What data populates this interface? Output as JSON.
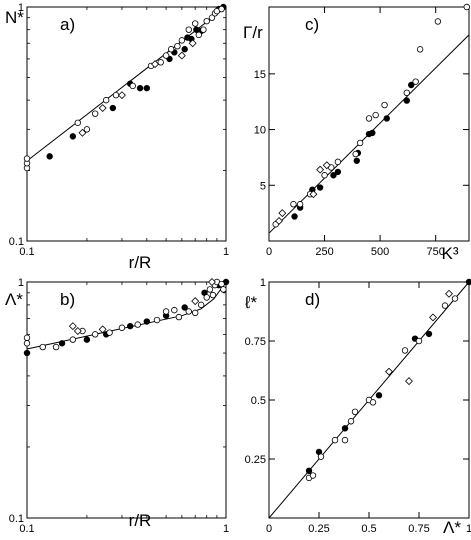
{
  "chart_data": [
    {
      "type": "scatter",
      "panel_label": "a)",
      "xlabel": "r/R",
      "ylabel": "N*",
      "xscale": "log",
      "yscale": "log",
      "xlim": [
        0.1,
        1
      ],
      "ylim": [
        0.1,
        1
      ],
      "x_ticks": [
        {
          "v": 0.1,
          "t": "0.1"
        },
        {
          "v": 1,
          "t": "1"
        }
      ],
      "y_ticks": [
        {
          "v": 0.1,
          "t": "0.1"
        },
        {
          "v": 1,
          "t": "1"
        }
      ],
      "fit_line": [
        [
          0.1,
          0.22
        ],
        [
          1.0,
          1.0
        ]
      ],
      "series": [
        {
          "marker": "filled-circle",
          "points": [
            [
              0.13,
              0.23
            ],
            [
              0.17,
              0.28
            ],
            [
              0.27,
              0.37
            ],
            [
              0.33,
              0.47
            ],
            [
              0.37,
              0.45
            ],
            [
              0.4,
              0.45
            ],
            [
              0.52,
              0.6
            ],
            [
              0.55,
              0.64
            ],
            [
              0.62,
              0.66
            ],
            [
              0.64,
              0.74
            ],
            [
              0.67,
              0.73
            ],
            [
              0.71,
              0.8
            ],
            [
              0.75,
              0.79
            ],
            [
              0.92,
              0.98
            ],
            [
              0.97,
              1.0
            ]
          ]
        },
        {
          "marker": "open-circle",
          "points": [
            [
              0.1,
              0.205
            ],
            [
              0.1,
              0.215
            ],
            [
              0.1,
              0.225
            ],
            [
              0.18,
              0.32
            ],
            [
              0.2,
              0.3
            ],
            [
              0.22,
              0.35
            ],
            [
              0.25,
              0.4
            ],
            [
              0.28,
              0.42
            ],
            [
              0.34,
              0.46
            ],
            [
              0.42,
              0.56
            ],
            [
              0.47,
              0.58
            ],
            [
              0.5,
              0.62
            ],
            [
              0.53,
              0.66
            ],
            [
              0.57,
              0.68
            ],
            [
              0.6,
              0.72
            ],
            [
              0.65,
              0.8
            ],
            [
              0.7,
              0.85
            ],
            [
              0.73,
              0.76
            ],
            [
              0.77,
              0.8
            ],
            [
              0.8,
              0.87
            ],
            [
              0.85,
              0.9
            ],
            [
              0.88,
              0.94
            ],
            [
              0.9,
              0.96
            ],
            [
              0.95,
              0.98
            ]
          ]
        },
        {
          "marker": "open-diamond",
          "points": [
            [
              0.19,
              0.29
            ],
            [
              0.24,
              0.37
            ],
            [
              0.3,
              0.42
            ],
            [
              0.44,
              0.57
            ],
            [
              0.6,
              0.62
            ],
            [
              0.68,
              0.7
            ]
          ]
        }
      ]
    },
    {
      "type": "scatter",
      "panel_label": "b)",
      "xlabel": "r/R",
      "ylabel": "Λ*",
      "xscale": "log",
      "yscale": "log",
      "xlim": [
        0.1,
        1
      ],
      "ylim": [
        0.1,
        1
      ],
      "x_ticks": [
        {
          "v": 0.1,
          "t": "0.1"
        },
        {
          "v": 1,
          "t": "1"
        }
      ],
      "y_ticks": [
        {
          "v": 0.1,
          "t": "0.1"
        },
        {
          "v": 1,
          "t": "1"
        }
      ],
      "fit_line": [
        [
          0.1,
          0.52
        ],
        [
          0.6,
          0.72
        ],
        [
          0.75,
          0.77
        ],
        [
          0.87,
          0.85
        ],
        [
          1.0,
          1.0
        ]
      ],
      "series": [
        {
          "marker": "filled-circle",
          "points": [
            [
              0.1,
              0.5
            ],
            [
              0.15,
              0.55
            ],
            [
              0.2,
              0.57
            ],
            [
              0.25,
              0.6
            ],
            [
              0.33,
              0.65
            ],
            [
              0.4,
              0.68
            ],
            [
              0.5,
              0.72
            ],
            [
              0.62,
              0.78
            ],
            [
              0.78,
              0.9
            ],
            [
              0.92,
              0.97
            ],
            [
              1.0,
              1.0
            ]
          ]
        },
        {
          "marker": "open-circle",
          "points": [
            [
              0.1,
              0.55
            ],
            [
              0.1,
              0.58
            ],
            [
              0.12,
              0.53
            ],
            [
              0.14,
              0.53
            ],
            [
              0.17,
              0.57
            ],
            [
              0.19,
              0.62
            ],
            [
              0.22,
              0.6
            ],
            [
              0.26,
              0.61
            ],
            [
              0.3,
              0.64
            ],
            [
              0.36,
              0.66
            ],
            [
              0.45,
              0.69
            ],
            [
              0.5,
              0.75
            ],
            [
              0.55,
              0.76
            ],
            [
              0.58,
              0.71
            ],
            [
              0.65,
              0.75
            ],
            [
              0.7,
              0.74
            ],
            [
              0.75,
              0.8
            ],
            [
              0.8,
              0.86
            ],
            [
              0.83,
              0.93
            ],
            [
              0.86,
              0.88
            ],
            [
              0.88,
              0.97
            ],
            [
              0.9,
              1.0
            ],
            [
              0.95,
              0.98
            ],
            [
              0.97,
              0.93
            ]
          ]
        },
        {
          "marker": "open-diamond",
          "points": [
            [
              0.17,
              0.65
            ],
            [
              0.18,
              0.62
            ],
            [
              0.24,
              0.63
            ],
            [
              0.7,
              0.83
            ],
            [
              0.85,
              1.0
            ]
          ]
        }
      ]
    },
    {
      "type": "scatter",
      "panel_label": "c)",
      "xlabel": "K³",
      "ylabel": "Γ/r",
      "xscale": "linear",
      "yscale": "linear",
      "xlim": [
        0,
        900
      ],
      "ylim": [
        0,
        21
      ],
      "x_ticks": [
        {
          "v": 0,
          "t": "0"
        },
        {
          "v": 250,
          "t": "250"
        },
        {
          "v": 500,
          "t": "500"
        },
        {
          "v": 750,
          "t": "750"
        }
      ],
      "y_ticks": [
        {
          "v": 5,
          "t": "5"
        },
        {
          "v": 10,
          "t": "10"
        },
        {
          "v": 15,
          "t": "15"
        }
      ],
      "fit_line": [
        [
          0,
          0.7
        ],
        [
          900,
          18.5
        ]
      ],
      "series": [
        {
          "marker": "filled-circle",
          "points": [
            [
              115,
              2.2
            ],
            [
              140,
              3.0
            ],
            [
              195,
              4.6
            ],
            [
              230,
              4.8
            ],
            [
              290,
              5.9
            ],
            [
              310,
              6.2
            ],
            [
              395,
              7.2
            ],
            [
              400,
              7.9
            ],
            [
              450,
              9.6
            ],
            [
              465,
              9.7
            ],
            [
              530,
              11.0
            ],
            [
              620,
              12.6
            ],
            [
              640,
              14.0
            ]
          ]
        },
        {
          "marker": "open-circle",
          "points": [
            [
              30,
              1.5
            ],
            [
              110,
              3.3
            ],
            [
              140,
              3.3
            ],
            [
              185,
              4.2
            ],
            [
              250,
              5.9
            ],
            [
              280,
              6.6
            ],
            [
              310,
              7.1
            ],
            [
              390,
              7.8
            ],
            [
              410,
              8.8
            ],
            [
              450,
              11.0
            ],
            [
              480,
              11.3
            ],
            [
              520,
              12.2
            ],
            [
              620,
              13.3
            ],
            [
              660,
              14.3
            ],
            [
              680,
              17.2
            ],
            [
              760,
              19.7
            ],
            [
              890,
              21.0
            ]
          ]
        },
        {
          "marker": "open-diamond",
          "points": [
            [
              45,
              1.8
            ],
            [
              60,
              2.5
            ],
            [
              200,
              4.2
            ],
            [
              230,
              6.4
            ],
            [
              260,
              6.8
            ]
          ]
        }
      ]
    },
    {
      "type": "scatter",
      "panel_label": "d)",
      "xlabel": "Λ*",
      "ylabel": "ℓ*",
      "xscale": "linear",
      "yscale": "linear",
      "xlim": [
        0,
        1
      ],
      "ylim": [
        0,
        1
      ],
      "x_ticks": [
        {
          "v": 0,
          "t": "0"
        },
        {
          "v": 0.25,
          "t": "0.25"
        },
        {
          "v": 0.5,
          "t": "0.5"
        },
        {
          "v": 0.75,
          "t": "0.75"
        },
        {
          "v": 1,
          "t": "1"
        }
      ],
      "y_ticks": [
        {
          "v": 0.25,
          "t": "0.25"
        },
        {
          "v": 0.5,
          "t": "0.5"
        },
        {
          "v": 0.75,
          "t": "0.75"
        },
        {
          "v": 1,
          "t": "1"
        }
      ],
      "fit_line": [
        [
          0,
          0
        ],
        [
          1,
          1
        ]
      ],
      "series": [
        {
          "marker": "filled-circle",
          "points": [
            [
              0.2,
              0.2
            ],
            [
              0.25,
              0.28
            ],
            [
              0.38,
              0.38
            ],
            [
              0.55,
              0.52
            ],
            [
              0.73,
              0.76
            ],
            [
              0.8,
              0.78
            ],
            [
              1.0,
              1.0
            ]
          ]
        },
        {
          "marker": "open-circle",
          "points": [
            [
              0.2,
              0.17
            ],
            [
              0.22,
              0.18
            ],
            [
              0.26,
              0.26
            ],
            [
              0.33,
              0.33
            ],
            [
              0.38,
              0.33
            ],
            [
              0.41,
              0.41
            ],
            [
              0.43,
              0.45
            ],
            [
              0.5,
              0.5
            ],
            [
              0.52,
              0.49
            ],
            [
              0.68,
              0.71
            ],
            [
              0.75,
              0.75
            ],
            [
              0.88,
              0.9
            ],
            [
              0.93,
              0.93
            ]
          ]
        },
        {
          "marker": "open-diamond",
          "points": [
            [
              0.6,
              0.62
            ],
            [
              0.7,
              0.58
            ],
            [
              0.82,
              0.85
            ],
            [
              0.9,
              0.95
            ]
          ]
        }
      ]
    }
  ]
}
